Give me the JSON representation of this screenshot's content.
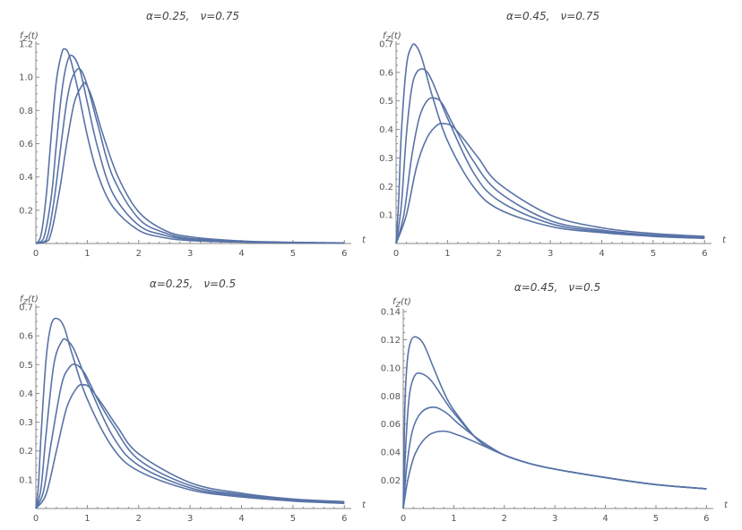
{
  "colors": {
    "curve": "#5873a6",
    "axis": "#8a8a8a",
    "text": "#555555"
  },
  "chart_data": [
    {
      "type": "line",
      "title_alpha": "α=0.25,",
      "title_nu": "ν=0.75",
      "ylabel_main": "f",
      "ylabel_sub": "Z",
      "ylabel_arg": "(t)",
      "xlabel": "t",
      "xlim": [
        0,
        6.1
      ],
      "ylim": [
        0,
        1.2
      ],
      "xticks": [
        0,
        1,
        2,
        3,
        4,
        5,
        6
      ],
      "yticks": [
        0.2,
        0.4,
        0.6,
        0.8,
        1.0,
        1.2
      ],
      "ytick_labels": [
        "0.2",
        "0.4",
        "0.6",
        "0.8",
        "1.0",
        "1.2"
      ],
      "series": [
        {
          "x": [
            0,
            0.1,
            0.2,
            0.3,
            0.4,
            0.5,
            0.56,
            0.65,
            0.8,
            1.0,
            1.2,
            1.5,
            2.0,
            2.5,
            3.0,
            4.0,
            5.0,
            6.0
          ],
          "y": [
            0,
            0.05,
            0.28,
            0.65,
            0.98,
            1.14,
            1.17,
            1.13,
            0.95,
            0.65,
            0.42,
            0.22,
            0.08,
            0.035,
            0.018,
            0.008,
            0.004,
            0.003
          ]
        },
        {
          "x": [
            0,
            0.15,
            0.3,
            0.4,
            0.5,
            0.6,
            0.7,
            0.85,
            1.0,
            1.2,
            1.5,
            2.0,
            2.5,
            3.0,
            4.0,
            5.0,
            6.0
          ],
          "y": [
            0,
            0.03,
            0.28,
            0.6,
            0.9,
            1.08,
            1.13,
            1.05,
            0.85,
            0.58,
            0.3,
            0.11,
            0.05,
            0.025,
            0.01,
            0.005,
            0.003
          ]
        },
        {
          "x": [
            0,
            0.2,
            0.35,
            0.5,
            0.6,
            0.7,
            0.85,
            1.0,
            1.2,
            1.5,
            2.0,
            2.5,
            3.0,
            4.0,
            5.0,
            6.0
          ],
          "y": [
            0,
            0.02,
            0.25,
            0.62,
            0.85,
            0.99,
            1.05,
            0.95,
            0.72,
            0.4,
            0.15,
            0.065,
            0.03,
            0.012,
            0.006,
            0.003
          ]
        },
        {
          "x": [
            0,
            0.25,
            0.45,
            0.6,
            0.75,
            0.9,
            0.97,
            1.1,
            1.3,
            1.6,
            2.0,
            2.5,
            3.0,
            4.0,
            5.0,
            6.0
          ],
          "y": [
            0,
            0.02,
            0.3,
            0.6,
            0.85,
            0.95,
            0.96,
            0.87,
            0.66,
            0.4,
            0.19,
            0.08,
            0.04,
            0.015,
            0.007,
            0.004
          ]
        }
      ]
    },
    {
      "type": "line",
      "title_alpha": "α=0.45,",
      "title_nu": "ν=0.75",
      "ylabel_main": "f",
      "ylabel_sub": "Z",
      "ylabel_arg": "(t)",
      "xlabel": "t",
      "xlim": [
        0,
        6.1
      ],
      "ylim": [
        0,
        0.7
      ],
      "xticks": [
        0,
        1,
        2,
        3,
        4,
        5,
        6
      ],
      "yticks": [
        0.1,
        0.2,
        0.3,
        0.4,
        0.5,
        0.6,
        0.7
      ],
      "ytick_labels": [
        "0.1",
        "0.2",
        "0.3",
        "0.4",
        "0.5",
        "0.6",
        "0.7"
      ],
      "series": [
        {
          "x": [
            0,
            0.05,
            0.1,
            0.2,
            0.3,
            0.38,
            0.5,
            0.7,
            1.0,
            1.5,
            2.0,
            3.0,
            4.0,
            5.0,
            6.0
          ],
          "y": [
            0,
            0.15,
            0.38,
            0.62,
            0.69,
            0.695,
            0.65,
            0.52,
            0.36,
            0.2,
            0.12,
            0.06,
            0.038,
            0.025,
            0.018
          ]
        },
        {
          "x": [
            0,
            0.1,
            0.2,
            0.3,
            0.4,
            0.55,
            0.7,
            1.0,
            1.5,
            2.0,
            3.0,
            4.0,
            5.0,
            6.0
          ],
          "y": [
            0,
            0.13,
            0.38,
            0.54,
            0.6,
            0.61,
            0.57,
            0.44,
            0.25,
            0.15,
            0.07,
            0.042,
            0.028,
            0.02
          ]
        },
        {
          "x": [
            0,
            0.15,
            0.3,
            0.45,
            0.6,
            0.75,
            0.9,
            1.1,
            1.5,
            2.0,
            3.0,
            4.0,
            5.0,
            6.0
          ],
          "y": [
            0,
            0.1,
            0.3,
            0.44,
            0.5,
            0.51,
            0.49,
            0.42,
            0.29,
            0.18,
            0.08,
            0.047,
            0.03,
            0.022
          ]
        },
        {
          "x": [
            0,
            0.2,
            0.4,
            0.6,
            0.8,
            0.95,
            1.1,
            1.3,
            1.6,
            2.0,
            3.0,
            4.0,
            5.0,
            6.0
          ],
          "y": [
            0,
            0.1,
            0.27,
            0.37,
            0.415,
            0.42,
            0.41,
            0.37,
            0.3,
            0.21,
            0.1,
            0.055,
            0.035,
            0.025
          ]
        }
      ]
    },
    {
      "type": "line",
      "title_alpha": "α=0.25,",
      "title_nu": "ν=0.5",
      "ylabel_main": "f",
      "ylabel_sub": "Z",
      "ylabel_arg": "(t)",
      "xlabel": "t",
      "xlim": [
        0,
        6.1
      ],
      "ylim": [
        0,
        0.7
      ],
      "xticks": [
        0,
        1,
        2,
        3,
        4,
        5,
        6
      ],
      "yticks": [
        0.1,
        0.2,
        0.3,
        0.4,
        0.5,
        0.6,
        0.7
      ],
      "ytick_labels": [
        "0.1",
        "0.2",
        "0.3",
        "0.4",
        "0.5",
        "0.6",
        "0.7"
      ],
      "series": [
        {
          "x": [
            0,
            0.05,
            0.1,
            0.2,
            0.3,
            0.42,
            0.55,
            0.7,
            1.0,
            1.5,
            2.0,
            3.0,
            4.0,
            5.0,
            6.0
          ],
          "y": [
            0,
            0.08,
            0.25,
            0.52,
            0.64,
            0.66,
            0.63,
            0.54,
            0.38,
            0.21,
            0.13,
            0.065,
            0.04,
            0.026,
            0.018
          ]
        },
        {
          "x": [
            0,
            0.1,
            0.2,
            0.35,
            0.5,
            0.6,
            0.75,
            1.0,
            1.5,
            2.0,
            3.0,
            4.0,
            5.0,
            6.0
          ],
          "y": [
            0,
            0.07,
            0.26,
            0.5,
            0.58,
            0.585,
            0.55,
            0.44,
            0.25,
            0.15,
            0.072,
            0.044,
            0.028,
            0.02
          ]
        },
        {
          "x": [
            0,
            0.15,
            0.3,
            0.5,
            0.65,
            0.78,
            0.95,
            1.2,
            1.5,
            2.0,
            3.0,
            4.0,
            5.0,
            6.0
          ],
          "y": [
            0,
            0.06,
            0.23,
            0.43,
            0.49,
            0.5,
            0.47,
            0.38,
            0.29,
            0.17,
            0.08,
            0.048,
            0.03,
            0.022
          ]
        },
        {
          "x": [
            0,
            0.2,
            0.4,
            0.6,
            0.8,
            0.92,
            1.05,
            1.3,
            1.6,
            2.0,
            3.0,
            4.0,
            5.0,
            6.0
          ],
          "y": [
            0,
            0.05,
            0.2,
            0.35,
            0.42,
            0.43,
            0.42,
            0.36,
            0.28,
            0.19,
            0.09,
            0.053,
            0.033,
            0.024
          ]
        }
      ]
    },
    {
      "type": "line",
      "title_alpha": "α=0.45,",
      "title_nu": "ν=0.5",
      "ylabel_main": "f",
      "ylabel_sub": "Z",
      "ylabel_arg": "(t)",
      "xlabel": "t",
      "xlim": [
        0,
        6.1
      ],
      "ylim": [
        0,
        0.14
      ],
      "xticks": [
        0,
        1,
        2,
        3,
        4,
        5,
        6
      ],
      "yticks": [
        0.02,
        0.04,
        0.06,
        0.08,
        0.1,
        0.12,
        0.14
      ],
      "ytick_labels": [
        "0.02",
        "0.04",
        "0.06",
        "0.08",
        "0.10",
        "0.12",
        "0.14"
      ],
      "series": [
        {
          "x": [
            0,
            0.03,
            0.08,
            0.15,
            0.25,
            0.4,
            0.6,
            0.8,
            1.0,
            1.5,
            2.0,
            2.5,
            3.0,
            4.0,
            5.0,
            6.0
          ],
          "y": [
            0,
            0.07,
            0.105,
            0.119,
            0.122,
            0.117,
            0.1,
            0.083,
            0.07,
            0.048,
            0.038,
            0.032,
            0.028,
            0.022,
            0.017,
            0.014
          ]
        },
        {
          "x": [
            0,
            0.05,
            0.12,
            0.22,
            0.35,
            0.55,
            0.8,
            1.0,
            1.5,
            2.0,
            2.5,
            3.0,
            4.0,
            5.0,
            6.0
          ],
          "y": [
            0,
            0.045,
            0.08,
            0.094,
            0.096,
            0.091,
            0.078,
            0.068,
            0.048,
            0.038,
            0.032,
            0.028,
            0.022,
            0.017,
            0.014
          ]
        },
        {
          "x": [
            0,
            0.07,
            0.18,
            0.35,
            0.6,
            0.85,
            1.1,
            1.5,
            2.0,
            2.5,
            3.0,
            4.0,
            5.0,
            6.0
          ],
          "y": [
            0,
            0.03,
            0.055,
            0.068,
            0.072,
            0.068,
            0.06,
            0.049,
            0.038,
            0.032,
            0.028,
            0.022,
            0.017,
            0.014
          ]
        },
        {
          "x": [
            0,
            0.1,
            0.25,
            0.5,
            0.8,
            1.1,
            1.5,
            2.0,
            2.5,
            3.0,
            4.0,
            5.0,
            6.0
          ],
          "y": [
            0,
            0.022,
            0.04,
            0.052,
            0.055,
            0.052,
            0.046,
            0.038,
            0.032,
            0.028,
            0.022,
            0.017,
            0.014
          ]
        }
      ]
    }
  ]
}
